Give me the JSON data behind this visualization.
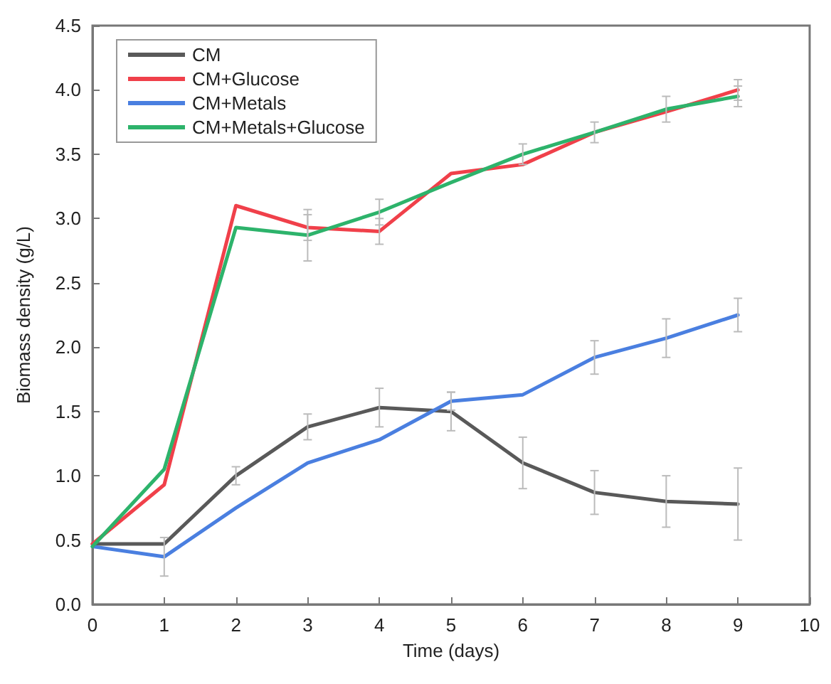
{
  "chart_data": {
    "type": "line",
    "xlabel": "Time (days)",
    "ylabel": "Biomass density (g/L)",
    "x": [
      0,
      1,
      2,
      3,
      4,
      5,
      6,
      7,
      8,
      9
    ],
    "series": [
      {
        "name": "CM",
        "color": "#595959",
        "values": [
          0.47,
          0.47,
          1.0,
          1.38,
          1.53,
          1.5,
          1.1,
          0.87,
          0.8,
          0.78
        ],
        "errors": [
          null,
          null,
          0.07,
          0.1,
          0.15,
          0.15,
          0.2,
          0.17,
          0.2,
          0.28
        ]
      },
      {
        "name": "CM+Glucose",
        "color": "#f0404a",
        "values": [
          0.47,
          0.93,
          3.1,
          2.93,
          2.9,
          3.35,
          3.42,
          3.67,
          3.83,
          4.0
        ],
        "errors": [
          null,
          null,
          null,
          0.1,
          0.1,
          null,
          null,
          null,
          null,
          0.08
        ]
      },
      {
        "name": "CM+Metals",
        "color": "#4a7fe0",
        "values": [
          0.45,
          0.37,
          0.75,
          1.1,
          1.28,
          1.58,
          1.63,
          1.92,
          2.07,
          2.25
        ],
        "errors": [
          null,
          0.15,
          null,
          null,
          null,
          0.07,
          null,
          0.13,
          0.15,
          0.13
        ]
      },
      {
        "name": "CM+Metals+Glucose",
        "color": "#2db36b",
        "values": [
          0.45,
          1.05,
          2.93,
          2.87,
          3.05,
          3.28,
          3.5,
          3.67,
          3.85,
          3.95
        ],
        "errors": [
          null,
          null,
          null,
          0.2,
          0.1,
          null,
          0.08,
          0.08,
          0.1,
          0.08
        ]
      }
    ],
    "xlim": [
      0,
      10
    ],
    "xticks": [
      0,
      1,
      2,
      3,
      4,
      5,
      6,
      7,
      8,
      9,
      10
    ],
    "ylim": [
      0,
      4.5
    ],
    "yticks": [
      {
        "value": 0,
        "label": "0.0"
      },
      0.5,
      {
        "value": 1,
        "label": "1.0"
      },
      1.5,
      {
        "value": 2,
        "label": "2.0"
      },
      2.5,
      {
        "value": 3,
        "label": "3.0"
      },
      3.5,
      {
        "value": 4,
        "label": "4.0"
      },
      4.5
    ],
    "grid": false,
    "legend": "top left",
    "marker": "none",
    "line_style": "solid"
  }
}
